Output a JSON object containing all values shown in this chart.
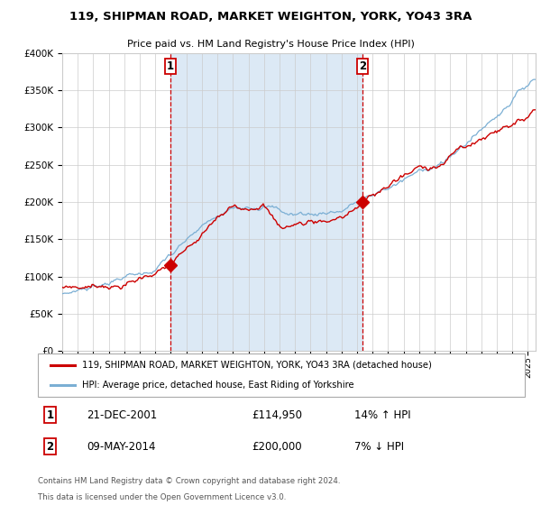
{
  "title1": "119, SHIPMAN ROAD, MARKET WEIGHTON, YORK, YO43 3RA",
  "title2": "Price paid vs. HM Land Registry's House Price Index (HPI)",
  "legend_label_red": "119, SHIPMAN ROAD, MARKET WEIGHTON, YORK, YO43 3RA (detached house)",
  "legend_label_blue": "HPI: Average price, detached house, East Riding of Yorkshire",
  "annotation1_num": "1",
  "annotation1_date": "21-DEC-2001",
  "annotation1_price": "£114,950",
  "annotation1_hpi": "14% ↑ HPI",
  "annotation2_num": "2",
  "annotation2_date": "09-MAY-2014",
  "annotation2_price": "£200,000",
  "annotation2_hpi": "7% ↓ HPI",
  "footnote1": "Contains HM Land Registry data © Crown copyright and database right 2024.",
  "footnote2": "This data is licensed under the Open Government Licence v3.0.",
  "vline1_x": 2001.97,
  "vline2_x": 2014.36,
  "sale1_x": 2001.97,
  "sale1_y": 114950,
  "sale2_x": 2014.36,
  "sale2_y": 200000,
  "ylim": [
    0,
    400000
  ],
  "xlim_start": 1995,
  "xlim_end": 2025.5,
  "shade_color": "#dce9f5",
  "background_color": "#ffffff",
  "grid_color": "#cccccc",
  "red_line_color": "#cc0000",
  "blue_line_color": "#7bafd4",
  "vline_color": "#cc0000"
}
